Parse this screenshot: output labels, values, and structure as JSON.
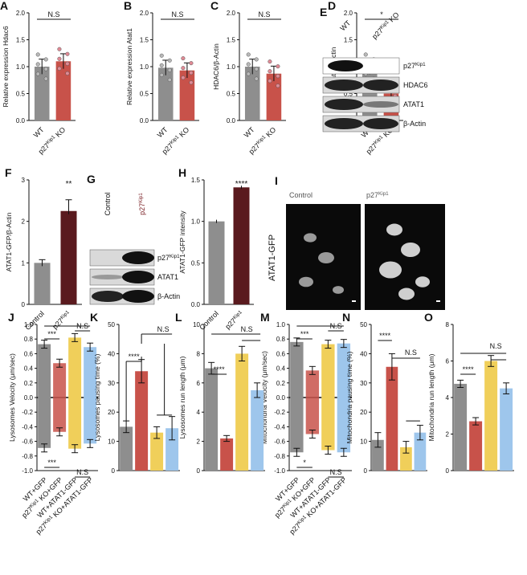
{
  "colors": {
    "wt": "#8e8e8e",
    "ko": "#c8524a",
    "dark": "#5a1a1e",
    "yellow": "#f0cf5a",
    "blue": "#9ec6ec",
    "pink": "#e08a95"
  },
  "panels": {
    "A": {
      "letter": "A",
      "ylabel": "Relative expression Hdac6",
      "sig": "N.S",
      "yticks": [
        "0.0",
        "0.5",
        "1.0",
        "1.5",
        "2.0"
      ]
    },
    "B": {
      "letter": "B",
      "ylabel": "Relative expression Atat1",
      "sig": "N.S",
      "yticks": [
        "0.0",
        "0.5",
        "1.0",
        "1.5",
        "2.0"
      ]
    },
    "C": {
      "letter": "C",
      "ylabel": "HDAC6/β-Actin",
      "sig": "N.S",
      "yticks": [
        "0.0",
        "0.5",
        "1.0",
        "1.5",
        "2.0"
      ]
    },
    "D": {
      "letter": "D",
      "ylabel": "Atat1/β-Actin",
      "sig": "*",
      "yticks": [
        "0.0",
        "0.5",
        "1.0",
        "1.5",
        "2.0"
      ]
    },
    "E": {
      "letter": "E",
      "col_wt": "WT",
      "col_ko": "p27Kip1 KO",
      "bands": [
        "p27Kip1",
        "HDAC6",
        "ATAT1",
        "β-Actin"
      ]
    },
    "F": {
      "letter": "F",
      "ylabel": "ATAT1-GFP/β-Actin",
      "sig": "**",
      "yticks": [
        "0",
        "1",
        "2",
        "3"
      ],
      "xticks": [
        "Control",
        "p27Kip1"
      ]
    },
    "G": {
      "letter": "G",
      "col_ctrl": "Control",
      "col_p27": "p27Kip1",
      "bands": [
        "p27Kip1",
        "ATAT1",
        "β-Actin"
      ]
    },
    "H": {
      "letter": "H",
      "ylabel": "ATAT1-GFP intensity",
      "sig": "****",
      "yticks": [
        "0.0",
        "0.5",
        "1.0",
        "1.5"
      ],
      "xticks": [
        "Control",
        "p27Kip1"
      ]
    },
    "I": {
      "letter": "I",
      "label_ctrl": "Control",
      "label_p27": "p27Kip1",
      "side_label": "ATAT1-GFP"
    },
    "J": {
      "letter": "J",
      "ylabel": "Lysosomes Velocity (μm/sec)",
      "sig_top1": "***",
      "sig_top2": "N.S",
      "sig_bot1": "***",
      "sig_bot2": "N.S",
      "yticks": [
        "1.0",
        "0.8",
        "0.6",
        "0.4",
        "0.2",
        "0.0",
        "-0.2",
        "-0.4",
        "-0.6",
        "-0.8",
        "-1.0"
      ]
    },
    "K": {
      "letter": "K",
      "ylabel": "Lysosomes pausing time (%)",
      "sig_a": "****",
      "sig_b": "N.S",
      "yticks": [
        "0",
        "10",
        "20",
        "30",
        "40",
        "50"
      ]
    },
    "L": {
      "letter": "L",
      "ylabel": "Lysosomes run length (μm)",
      "sig_a": "****",
      "sig_b": "N.S",
      "yticks": [
        "0",
        "2",
        "4",
        "6",
        "8",
        "10"
      ]
    },
    "M": {
      "letter": "M",
      "ylabel": "Mitochondria Velocity (μm/sec)",
      "sig_top1": "***",
      "sig_top2": "N.S",
      "sig_bot1": "*",
      "sig_bot2": "N.S",
      "yticks": [
        "1.0",
        "0.8",
        "0.6",
        "0.4",
        "0.2",
        "0.0",
        "-0.2",
        "-0.4",
        "-0.6",
        "-0.8",
        "-1.0"
      ]
    },
    "N": {
      "letter": "N",
      "ylabel": "Mitochondria pausing time (%)",
      "sig_a": "****",
      "sig_b": "N.S",
      "yticks": [
        "0",
        "10",
        "20",
        "30",
        "40",
        "50"
      ]
    },
    "O": {
      "letter": "O",
      "ylabel": "Mitochondria run length (μm)",
      "sig_a": "****",
      "sig_b": "N.S",
      "yticks": [
        "0",
        "2",
        "4",
        "6",
        "8"
      ]
    }
  },
  "x_two": [
    "WT",
    "p27Kip1 KO"
  ],
  "x_four": [
    "WT+GFP",
    "p27Kip1 KO+GFP",
    "WT+ATAT1-GFP",
    "p27Kip1 KO+ATAT1-GFP"
  ],
  "chart_data": [
    {
      "panel": "A",
      "type": "bar",
      "categories": [
        "WT",
        "p27Kip1 KO"
      ],
      "values": [
        1.0,
        1.1
      ],
      "ylabel": "Relative expression Hdac6",
      "ylim": [
        0,
        2
      ]
    },
    {
      "panel": "B",
      "type": "bar",
      "categories": [
        "WT",
        "p27Kip1 KO"
      ],
      "values": [
        0.98,
        0.93
      ],
      "ylabel": "Relative expression Atat1",
      "ylim": [
        0,
        2
      ]
    },
    {
      "panel": "C",
      "type": "bar",
      "categories": [
        "WT",
        "p27Kip1 KO"
      ],
      "values": [
        1.0,
        0.87
      ],
      "ylabel": "HDAC6/β-Actin",
      "ylim": [
        0,
        2
      ]
    },
    {
      "panel": "D",
      "type": "bar",
      "categories": [
        "WT",
        "p27Kip1 KO"
      ],
      "values": [
        1.0,
        0.5
      ],
      "ylabel": "Atat1/β-Actin",
      "ylim": [
        0,
        2
      ]
    },
    {
      "panel": "F",
      "type": "bar",
      "categories": [
        "Control",
        "p27Kip1"
      ],
      "values": [
        1.0,
        2.25
      ],
      "ylabel": "ATAT1-GFP/β-Actin",
      "ylim": [
        0,
        3
      ]
    },
    {
      "panel": "H",
      "type": "bar",
      "categories": [
        "Control",
        "p27Kip1"
      ],
      "values": [
        1.0,
        1.41
      ],
      "ylabel": "ATAT1-GFP intensity",
      "ylim": [
        0,
        1.5
      ]
    },
    {
      "panel": "J",
      "type": "bar",
      "categories": [
        "WT+GFP",
        "p27Kip1 KO+GFP",
        "WT+ATAT1-GFP",
        "p27Kip1 KO+ATAT1-GFP"
      ],
      "series": [
        {
          "values": [
            0.73,
            0.47,
            0.82,
            0.69
          ]
        },
        {
          "values": [
            -0.69,
            -0.47,
            -0.7,
            -0.63
          ]
        }
      ],
      "ylabel": "Lysosomes Velocity (μm/sec)",
      "ylim": [
        -1,
        1
      ]
    },
    {
      "panel": "K",
      "type": "bar",
      "categories": [
        "WT+GFP",
        "p27Kip1 KO+GFP",
        "WT+ATAT1-GFP",
        "p27Kip1 KO+ATAT1-GFP"
      ],
      "values": [
        15,
        34,
        13,
        14.5
      ],
      "ylabel": "Lysosomes pausing time (%)",
      "ylim": [
        0,
        50
      ]
    },
    {
      "panel": "L",
      "type": "bar",
      "categories": [
        "WT+GFP",
        "p27Kip1 KO+GFP",
        "WT+ATAT1-GFP",
        "p27Kip1 KO+ATAT1-GFP"
      ],
      "values": [
        7.0,
        2.2,
        8.0,
        5.5
      ],
      "ylabel": "Lysosomes run length (μm)",
      "ylim": [
        0,
        10
      ]
    },
    {
      "panel": "M",
      "type": "bar",
      "categories": [
        "WT+GFP",
        "p27Kip1 KO+GFP",
        "WT+ATAT1-GFP",
        "p27Kip1 KO+ATAT1-GFP"
      ],
      "series": [
        {
          "values": [
            0.76,
            0.37,
            0.73,
            0.74
          ]
        },
        {
          "values": [
            -0.75,
            -0.5,
            -0.72,
            -0.75
          ]
        }
      ],
      "ylabel": "Mitochondria Velocity (μm/sec)",
      "ylim": [
        -1,
        1
      ]
    },
    {
      "panel": "N",
      "type": "bar",
      "categories": [
        "WT+GFP",
        "p27Kip1 KO+GFP",
        "WT+ATAT1-GFP",
        "p27Kip1 KO+ATAT1-GFP"
      ],
      "values": [
        10.5,
        35.5,
        8,
        13
      ],
      "ylabel": "Mitochondria pausing time (%)",
      "ylim": [
        0,
        50
      ]
    },
    {
      "panel": "O",
      "type": "bar",
      "categories": [
        "WT+GFP",
        "p27Kip1 KO+GFP",
        "WT+ATAT1-GFP",
        "p27Kip1 KO+ATAT1-GFP"
      ],
      "values": [
        4.75,
        2.7,
        6.0,
        4.5
      ],
      "ylabel": "Mitochondria run length (μm)",
      "ylim": [
        0,
        8
      ]
    }
  ]
}
